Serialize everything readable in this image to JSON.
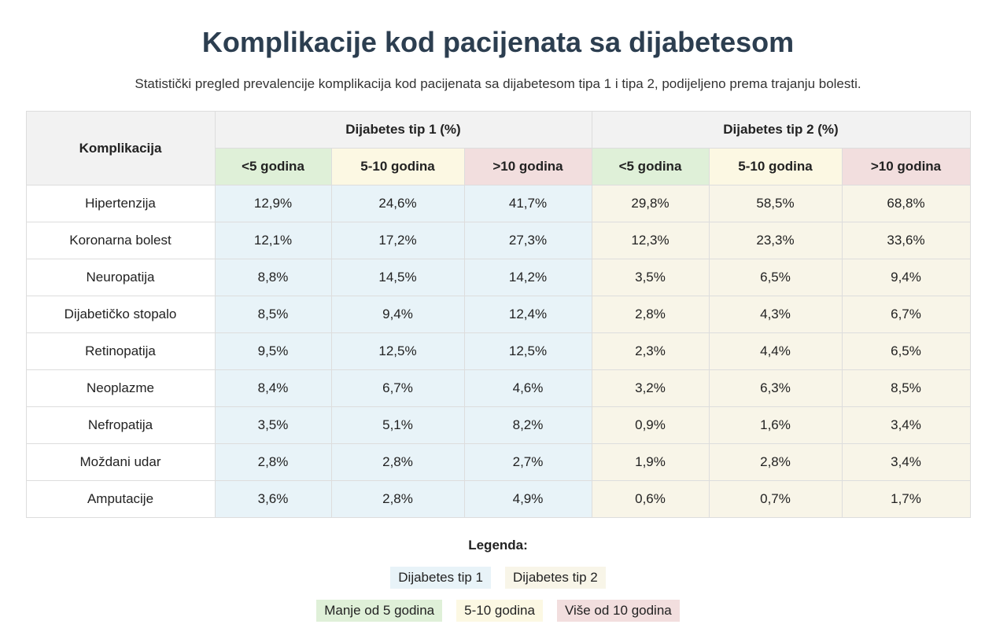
{
  "title": "Komplikacije kod pacijenata sa dijabetesom",
  "subtitle": "Statistički pregled prevalencije komplikacija kod pacijenata sa dijabetesom tipa 1 i tipa 2, podijeljeno prema trajanju bolesti.",
  "table": {
    "col_complication": "Komplikacija",
    "group_type1": "Dijabetes tip 1 (%)",
    "group_type2": "Dijabetes tip 2 (%)",
    "sub_headers": [
      "<5 godina",
      "5-10 godina",
      ">10 godina"
    ],
    "rows": [
      {
        "name": "Hipertenzija",
        "t1": [
          "12,9%",
          "24,6%",
          "41,7%"
        ],
        "t2": [
          "29,8%",
          "58,5%",
          "68,8%"
        ]
      },
      {
        "name": "Koronarna bolest",
        "t1": [
          "12,1%",
          "17,2%",
          "27,3%"
        ],
        "t2": [
          "12,3%",
          "23,3%",
          "33,6%"
        ]
      },
      {
        "name": "Neuropatija",
        "t1": [
          "8,8%",
          "14,5%",
          "14,2%"
        ],
        "t2": [
          "3,5%",
          "6,5%",
          "9,4%"
        ]
      },
      {
        "name": "Dijabetičko stopalo",
        "t1": [
          "8,5%",
          "9,4%",
          "12,4%"
        ],
        "t2": [
          "2,8%",
          "4,3%",
          "6,7%"
        ]
      },
      {
        "name": "Retinopatija",
        "t1": [
          "9,5%",
          "12,5%",
          "12,5%"
        ],
        "t2": [
          "2,3%",
          "4,4%",
          "6,5%"
        ]
      },
      {
        "name": "Neoplazme",
        "t1": [
          "8,4%",
          "6,7%",
          "4,6%"
        ],
        "t2": [
          "3,2%",
          "6,3%",
          "8,5%"
        ]
      },
      {
        "name": "Nefropatija",
        "t1": [
          "3,5%",
          "5,1%",
          "8,2%"
        ],
        "t2": [
          "0,9%",
          "1,6%",
          "3,4%"
        ]
      },
      {
        "name": "Moždani udar",
        "t1": [
          "2,8%",
          "2,8%",
          "2,7%"
        ],
        "t2": [
          "1,9%",
          "2,8%",
          "3,4%"
        ]
      },
      {
        "name": "Amputacije",
        "t1": [
          "3,6%",
          "2,8%",
          "4,9%"
        ],
        "t2": [
          "0,6%",
          "0,7%",
          "1,7%"
        ]
      }
    ]
  },
  "legend": {
    "title": "Legenda:",
    "type1": "Dijabetes tip 1",
    "type2": "Dijabetes tip 2",
    "lt5": "Manje od 5 godina",
    "mid": "5-10 godina",
    "gt10": "Više od 10 godina"
  },
  "colors": {
    "title": "#2c3e50",
    "type1_bg": "#e8f3f8",
    "type2_bg": "#f8f5e8",
    "lt5_bg": "#dff0d8",
    "mid_bg": "#fcf8e3",
    "gt10_bg": "#f2dede",
    "header_bg": "#f2f2f2"
  }
}
